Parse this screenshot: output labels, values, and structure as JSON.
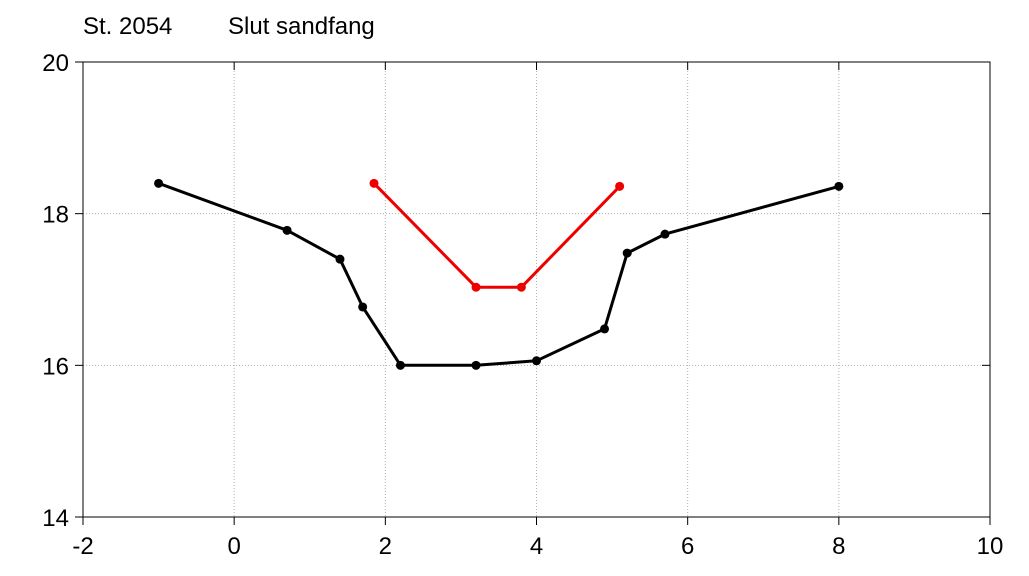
{
  "chart_data": {
    "type": "line",
    "title": "St. 2054",
    "subtitle": "Slut sandfang",
    "xlabel": "",
    "ylabel": "",
    "xlim": [
      -2,
      10
    ],
    "ylim": [
      14,
      20
    ],
    "xticks": [
      -2,
      0,
      2,
      4,
      6,
      8,
      10
    ],
    "yticks": [
      14,
      16,
      18,
      20
    ],
    "xtick_labels": [
      "-2",
      "0",
      "2",
      "4",
      "6",
      "8",
      "10"
    ],
    "ytick_labels": [
      "14",
      "16",
      "18",
      "20"
    ],
    "grid": true,
    "legend": "none",
    "series": [
      {
        "color": "#000000",
        "x": [
          -1.0,
          0.7,
          1.4,
          1.7,
          2.2,
          3.2,
          4.0,
          4.9,
          5.2,
          5.7,
          8.0
        ],
        "y": [
          18.4,
          17.78,
          17.4,
          16.77,
          16.0,
          16.0,
          16.06,
          16.48,
          17.48,
          17.73,
          18.36
        ]
      },
      {
        "color": "#ee0000",
        "x": [
          1.85,
          3.2,
          3.8,
          5.1
        ],
        "y": [
          18.4,
          17.03,
          17.03,
          18.36
        ]
      }
    ]
  }
}
